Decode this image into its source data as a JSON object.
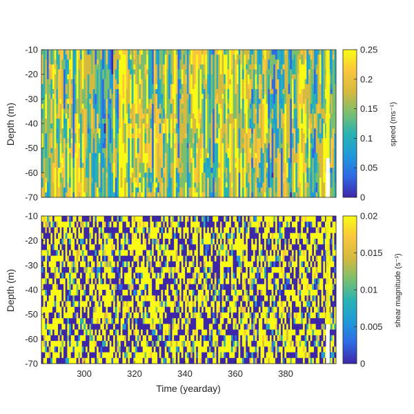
{
  "chart_data": [
    {
      "type": "heatmap",
      "panel": "top",
      "ylabel": "Depth (m)",
      "xlabel": "",
      "xlim": [
        283,
        400
      ],
      "ylim": [
        -70,
        -10
      ],
      "yticks": [
        -10,
        -20,
        -30,
        -40,
        -50,
        -60,
        -70
      ],
      "xticks": [],
      "colorbar": {
        "label": "speed (ms⁻¹)",
        "range": [
          0,
          0.25
        ],
        "ticks": [
          "0.25",
          "0.2",
          "0.15",
          "0.1",
          "0.05",
          "0"
        ]
      },
      "colormap": [
        "#3e26a8",
        "#2f6ae4",
        "#209ad9",
        "#2ab2b3",
        "#7bbf6e",
        "#d6b93f",
        "#fac63d",
        "#f9fb15"
      ],
      "missing_band_x": [
        396,
        397.5
      ]
    },
    {
      "type": "heatmap",
      "panel": "bottom",
      "ylabel": "Depth (m)",
      "xlabel": "Time (yearday)",
      "xlim": [
        283,
        400
      ],
      "ylim": [
        -70,
        -10
      ],
      "yticks": [
        -10,
        -20,
        -30,
        -40,
        -50,
        -60,
        -70
      ],
      "xticks": [
        300,
        320,
        340,
        360,
        380
      ],
      "colorbar": {
        "label": "shear magnitude (s⁻¹)",
        "range": [
          0,
          0.02
        ],
        "ticks": [
          "0.02",
          "0.015",
          "0.01",
          "0.005",
          "0"
        ]
      },
      "colormap": [
        "#3e26a8",
        "#2f6ae4",
        "#209ad9",
        "#2ab2b3",
        "#7bbf6e",
        "#d6b93f",
        "#fac63d",
        "#f9fb15"
      ],
      "missing_band_x": [
        396,
        397.5
      ]
    }
  ]
}
